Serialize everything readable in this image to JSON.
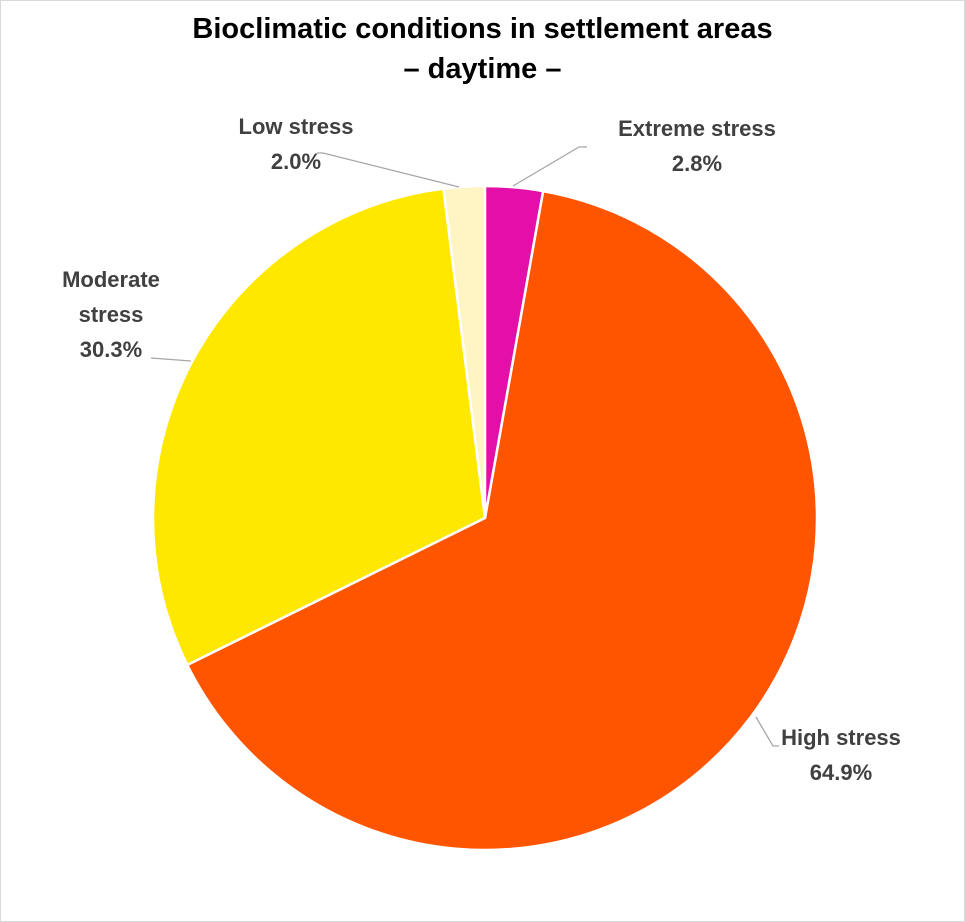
{
  "chart_data": {
    "type": "pie",
    "title": "Bioclimatic conditions in settlement areas",
    "subtitle": "– daytime –",
    "categories": [
      "Extreme stress",
      "High stress",
      "Moderate stress",
      "Low stress"
    ],
    "values": [
      2.8,
      64.9,
      30.3,
      2.0
    ],
    "value_labels": [
      "2.8%",
      "64.9%",
      "30.3%",
      "2.0%"
    ],
    "colors": [
      "#e30fa8",
      "#ff5500",
      "#ffe800",
      "#fff5c4"
    ]
  }
}
